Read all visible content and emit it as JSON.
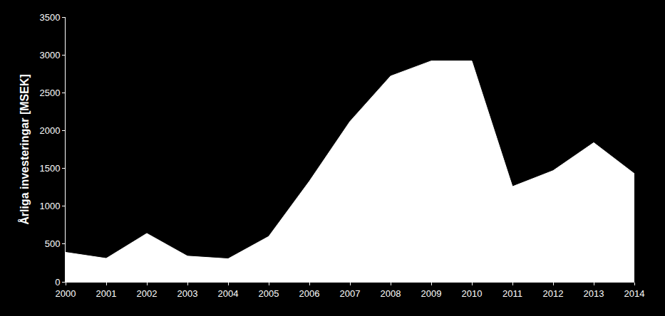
{
  "chart_data": {
    "type": "area",
    "y_label": "Årliga investeringar [MSEK]",
    "x": [
      2000,
      2001,
      2002,
      2003,
      2004,
      2005,
      2006,
      2007,
      2008,
      2009,
      2010,
      2011,
      2012,
      2013,
      2014
    ],
    "values": [
      390,
      310,
      640,
      340,
      305,
      600,
      1330,
      2120,
      2720,
      2920,
      2920,
      1260,
      1470,
      1840,
      1430
    ],
    "color": "#ffffff",
    "xlim": [
      2000,
      2014
    ],
    "xticks": [
      2000,
      2001,
      2002,
      2003,
      2004,
      2005,
      2006,
      2007,
      2008,
      2009,
      2010,
      2011,
      2012,
      2013,
      2014
    ],
    "ylim": [
      0,
      3500
    ],
    "yticks": [
      0,
      500,
      1000,
      1500,
      2000,
      2500,
      3000,
      3500
    ],
    "grid": false
  }
}
